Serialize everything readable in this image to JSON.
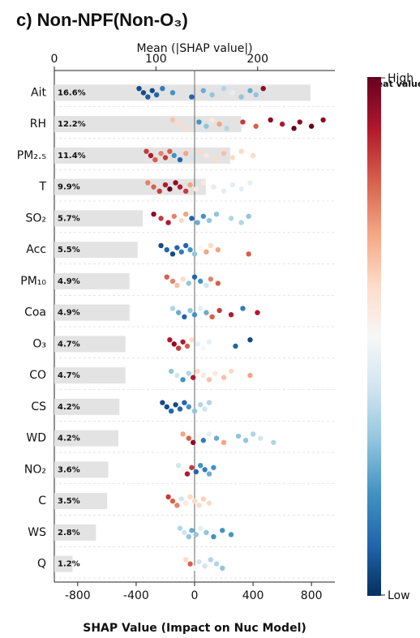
{
  "chart_data": {
    "type": "shap",
    "title": "c) Non-NPF(Non-O₃)",
    "top_axis_label": "Mean (|SHAP value|)",
    "x_label": "SHAP Value (Impact on Nuc Model)",
    "colorbar_label": "Feat value",
    "colorbar_high": "High",
    "colorbar_low": "Low",
    "categories": [
      "Ait",
      "RH",
      "PM₂.₅",
      "T",
      "SO₂",
      "Acc",
      "PM₁₀",
      "Coa",
      "O₃",
      "CO",
      "CS",
      "WD",
      "NO₂",
      "C",
      "WS",
      "Q"
    ],
    "values": [
      252,
      184,
      173,
      149,
      87,
      82,
      74,
      74,
      70,
      70,
      64,
      63,
      53,
      52,
      41,
      18
    ],
    "percent_labels": [
      "16.6%",
      "12.2%",
      "11.4%",
      "9.9%",
      "5.7%",
      "5.5%",
      "4.9%",
      "4.9%",
      "4.7%",
      "4.7%",
      "4.2%",
      "4.2%",
      "3.6%",
      "3.5%",
      "2.8%",
      "1.2%"
    ],
    "bar_color": "#e3e3e3",
    "x2lim": [
      0,
      276
    ],
    "x2ticks": [
      0,
      100,
      200
    ],
    "xlim": [
      -960,
      960
    ],
    "xticks": [
      -800,
      -400,
      0,
      400,
      800
    ],
    "colormap": [
      "#053061",
      "#2166ac",
      "#4393c3",
      "#92c5de",
      "#d1e5f0",
      "#f7f7f7",
      "#fddbc7",
      "#f4a582",
      "#d6604d",
      "#b2182b",
      "#67001f"
    ],
    "points": [
      {
        "shap": [
          -380,
          -350,
          -320,
          -290,
          -260,
          -220,
          -150,
          -20,
          60,
          120,
          200,
          260,
          320,
          380,
          420,
          470
        ],
        "feat": [
          0.05,
          0.05,
          0.08,
          0.05,
          0.1,
          0.15,
          0.2,
          0.1,
          0.25,
          0.3,
          0.35,
          0.45,
          0.3,
          0.25,
          0.3,
          0.95
        ]
      },
      {
        "shap": [
          -150,
          -110,
          -60,
          30,
          80,
          120,
          170,
          220,
          330,
          420,
          520,
          600,
          680,
          720,
          800,
          880
        ],
        "feat": [
          0.65,
          0.6,
          0.6,
          0.2,
          0.3,
          0.55,
          0.7,
          0.35,
          0.85,
          0.8,
          0.95,
          0.9,
          1,
          0.95,
          1,
          0.95
        ]
      },
      {
        "shap": [
          -330,
          -300,
          -270,
          -230,
          -200,
          -170,
          -140,
          -100,
          -60,
          -20,
          30,
          80,
          140,
          200,
          260,
          320,
          400
        ],
        "feat": [
          0.85,
          0.9,
          0.8,
          0.75,
          0.85,
          0.8,
          0.2,
          0.1,
          0.7,
          0.4,
          0.6,
          0.55,
          0.6,
          0.65,
          0.6,
          0.6,
          0.6
        ]
      },
      {
        "shap": [
          -320,
          -280,
          -240,
          -200,
          -170,
          -130,
          -100,
          -60,
          -30,
          10,
          60,
          130,
          200,
          260,
          320,
          380
        ],
        "feat": [
          0.75,
          0.8,
          0.85,
          0.9,
          1,
          0.95,
          0.9,
          0.85,
          0.7,
          0.55,
          0.55,
          0.45,
          0.45,
          0.45,
          0.45,
          0.45
        ]
      },
      {
        "shap": [
          -280,
          -230,
          -180,
          -140,
          -90,
          -60,
          -20,
          20,
          60,
          100,
          150,
          250,
          320,
          370
        ],
        "feat": [
          0.95,
          0.85,
          0.9,
          0.75,
          0.6,
          0.7,
          0.1,
          0.25,
          0.2,
          0.3,
          0.3,
          0.35,
          0.35,
          0.3
        ]
      },
      {
        "shap": [
          -230,
          -190,
          -150,
          -120,
          -90,
          -60,
          -30,
          0,
          40,
          80,
          110,
          160,
          370
        ],
        "feat": [
          0.05,
          0.1,
          0.05,
          0.1,
          0.15,
          0.1,
          0.2,
          0.3,
          0.5,
          0.7,
          0.6,
          0.7,
          0.8
        ]
      },
      {
        "shap": [
          -190,
          -150,
          -120,
          -80,
          -40,
          0,
          40,
          80,
          110,
          160
        ],
        "feat": [
          0.8,
          0.75,
          0.65,
          0.6,
          0.3,
          0.1,
          0.2,
          0.4,
          0.75,
          0.8
        ]
      },
      {
        "shap": [
          -150,
          -110,
          -70,
          -30,
          0,
          40,
          80,
          120,
          170,
          250,
          330,
          430
        ],
        "feat": [
          0.35,
          0.25,
          0.1,
          0.3,
          0.2,
          0.45,
          0.25,
          0.8,
          0.85,
          0.9,
          0.15,
          0.9
        ]
      },
      {
        "shap": [
          -170,
          -140,
          -110,
          -80,
          -50,
          -20,
          20,
          60,
          100,
          280,
          380
        ],
        "feat": [
          0.9,
          0.95,
          0.85,
          0.9,
          0.8,
          0.6,
          0.45,
          0.5,
          0.45,
          0.1,
          0.05
        ]
      },
      {
        "shap": [
          -160,
          -120,
          -80,
          -40,
          -10,
          20,
          60,
          100,
          140,
          200,
          250,
          380
        ],
        "feat": [
          0.3,
          0.4,
          0.2,
          0.35,
          0.9,
          0.6,
          0.55,
          0.65,
          0.55,
          0.65,
          0.6,
          0.7
        ]
      },
      {
        "shap": [
          -220,
          -190,
          -160,
          -130,
          -100,
          -70,
          -40,
          0,
          40,
          70,
          100
        ],
        "feat": [
          0.05,
          0.05,
          0.1,
          0.05,
          0.1,
          0.1,
          0.2,
          0.3,
          0.35,
          0.4,
          0.35
        ]
      },
      {
        "shap": [
          -80,
          -40,
          -10,
          20,
          60,
          100,
          150,
          200,
          300,
          350,
          400,
          450,
          540
        ],
        "feat": [
          0.7,
          0.8,
          0.95,
          0.5,
          0.15,
          0.45,
          0.25,
          0.7,
          0.3,
          0.3,
          0.35,
          0.4,
          0.35
        ]
      },
      {
        "shap": [
          -110,
          -80,
          -50,
          -20,
          10,
          40,
          70,
          100,
          130
        ],
        "feat": [
          0.4,
          0.5,
          0.9,
          0.85,
          0.1,
          0.2,
          0.15,
          0.25,
          0.2
        ]
      },
      {
        "shap": [
          -180,
          -150,
          -120,
          -90,
          -60,
          -30,
          0,
          30,
          60,
          100
        ],
        "feat": [
          0.85,
          0.8,
          0.75,
          0.4,
          0.55,
          0.6,
          0.6,
          0.6,
          0.62,
          0.6
        ]
      },
      {
        "shap": [
          -100,
          -70,
          -40,
          -20,
          10,
          40,
          80,
          130,
          190,
          250
        ],
        "feat": [
          0.35,
          0.4,
          0.3,
          0.25,
          0.3,
          0.45,
          0.3,
          0.2,
          0.2,
          0.2
        ]
      },
      {
        "shap": [
          -60,
          -30,
          0,
          30,
          70,
          110,
          150,
          190
        ],
        "feat": [
          0.6,
          0.8,
          0.5,
          0.4,
          0.4,
          0.35,
          0.35,
          0.3
        ]
      }
    ]
  }
}
